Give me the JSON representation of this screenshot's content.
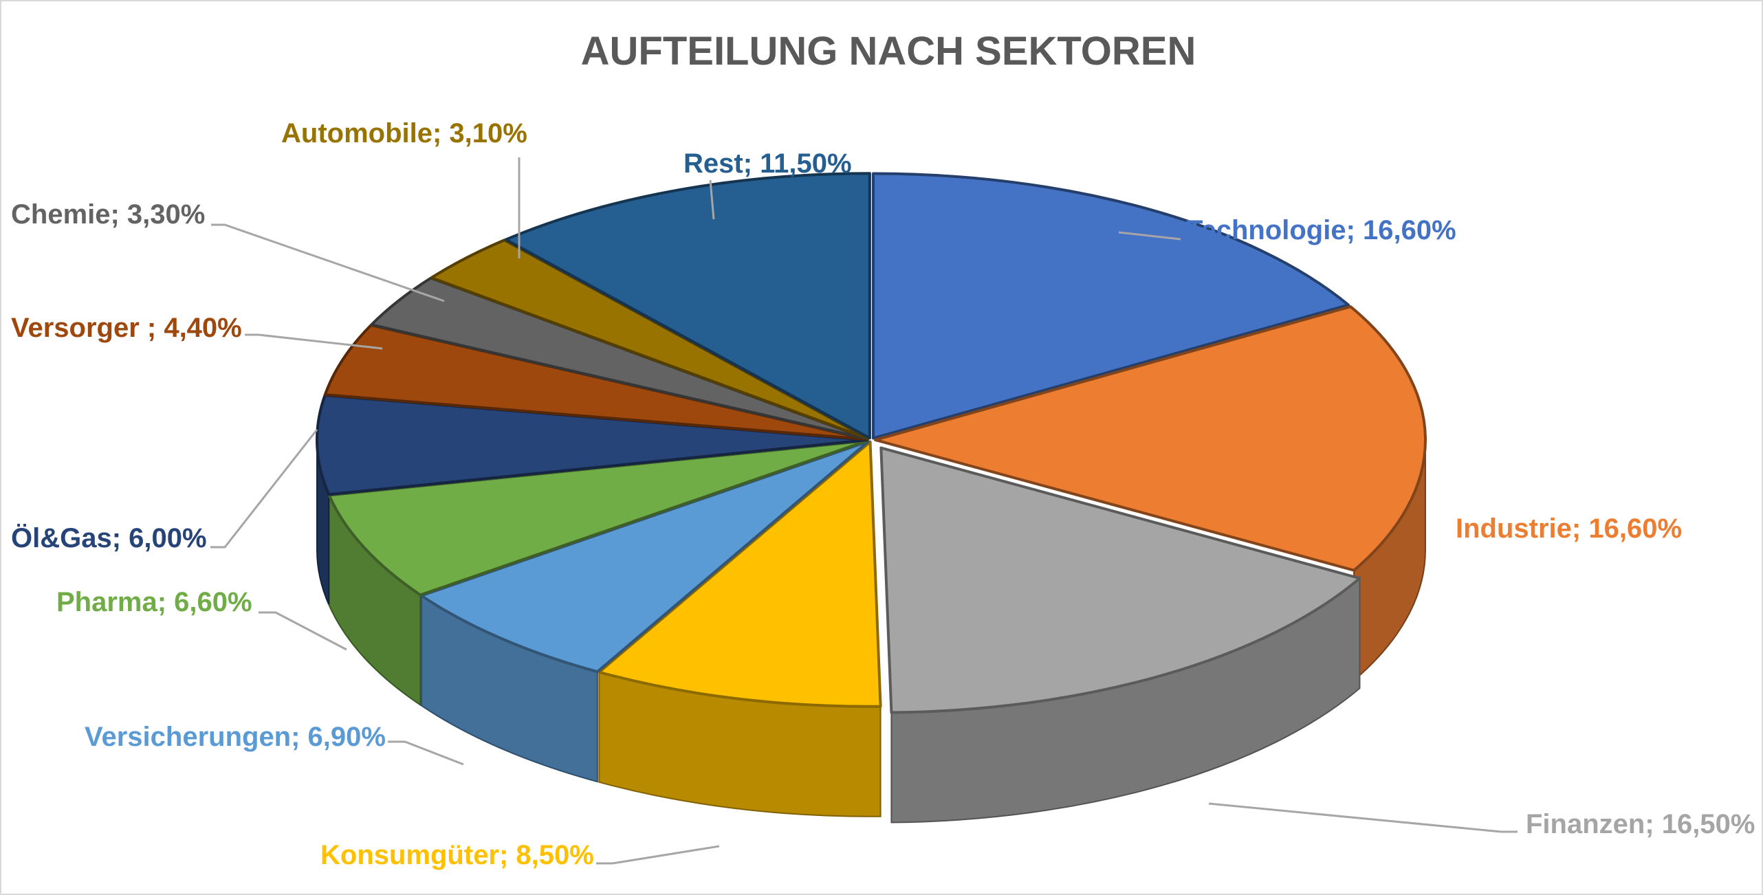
{
  "chart_data": {
    "type": "pie",
    "style": "3d-exploded",
    "title": "AUFTEILUNG NACH SEKTOREN",
    "start": "top",
    "direction": "clockwise",
    "slices": [
      {
        "name": "Technologie",
        "value": 16.6,
        "label": "Technologie; 16,60%",
        "color": "#4472C4"
      },
      {
        "name": "Industrie",
        "value": 16.6,
        "label": "Industrie; 16,60%",
        "color": "#ED7D31"
      },
      {
        "name": "Finanzen",
        "value": 16.5,
        "label": "Finanzen; 16,50%",
        "color": "#A5A5A5",
        "exploded": true
      },
      {
        "name": "Konsumgüter",
        "value": 8.5,
        "label": "Konsumgüter; 8,50%",
        "color": "#FFC000"
      },
      {
        "name": "Versicherungen",
        "value": 6.9,
        "label": "Versicherungen; 6,90%",
        "color": "#5B9BD5"
      },
      {
        "name": "Pharma",
        "value": 6.6,
        "label": "Pharma; 6,60%",
        "color": "#70AD47"
      },
      {
        "name": "Öl&Gas",
        "value": 6.0,
        "label": "Öl&Gas; 6,00%",
        "color": "#264478"
      },
      {
        "name": "Versorger",
        "value": 4.4,
        "label": "Versorger ; 4,40%",
        "color": "#9E480E"
      },
      {
        "name": "Chemie",
        "value": 3.3,
        "label": "Chemie; 3,30%",
        "color": "#636363"
      },
      {
        "name": "Automobile",
        "value": 3.1,
        "label": "Automobile; 3,10%",
        "color": "#997300"
      },
      {
        "name": "Rest",
        "value": 11.5,
        "label": "Rest; 11,50%",
        "color": "#255E91"
      }
    ]
  }
}
